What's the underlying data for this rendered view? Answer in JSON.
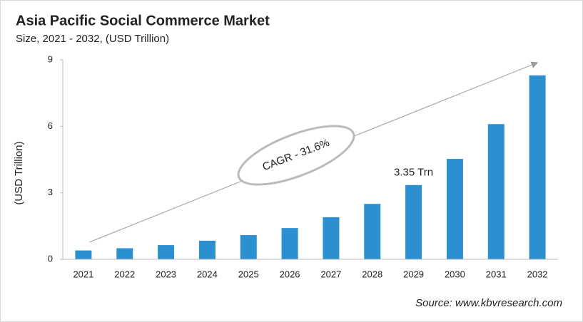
{
  "chart_data": {
    "type": "bar",
    "title": "Asia Pacific Social Commerce Market",
    "subtitle": "Size, 2021 - 2032, (USD Trillion)",
    "y_label": "(USD Trillion)",
    "annotation": "CAGR - 31.6%",
    "source": "Source: www.kbvresearch.com",
    "categories": [
      "2021",
      "2022",
      "2023",
      "2024",
      "2025",
      "2026",
      "2027",
      "2028",
      "2029",
      "2030",
      "2031",
      "2032"
    ],
    "values": [
      0.4,
      0.5,
      0.64,
      0.84,
      1.09,
      1.41,
      1.9,
      2.5,
      3.35,
      4.53,
      6.1,
      8.3
    ],
    "value_labels": [
      null,
      null,
      null,
      null,
      null,
      null,
      null,
      null,
      "3.35 Trn",
      null,
      null,
      null
    ],
    "color": "#2b8fd0",
    "ylim": [
      0,
      9
    ],
    "yticks": [
      0,
      3,
      6,
      9
    ],
    "grid": false
  }
}
